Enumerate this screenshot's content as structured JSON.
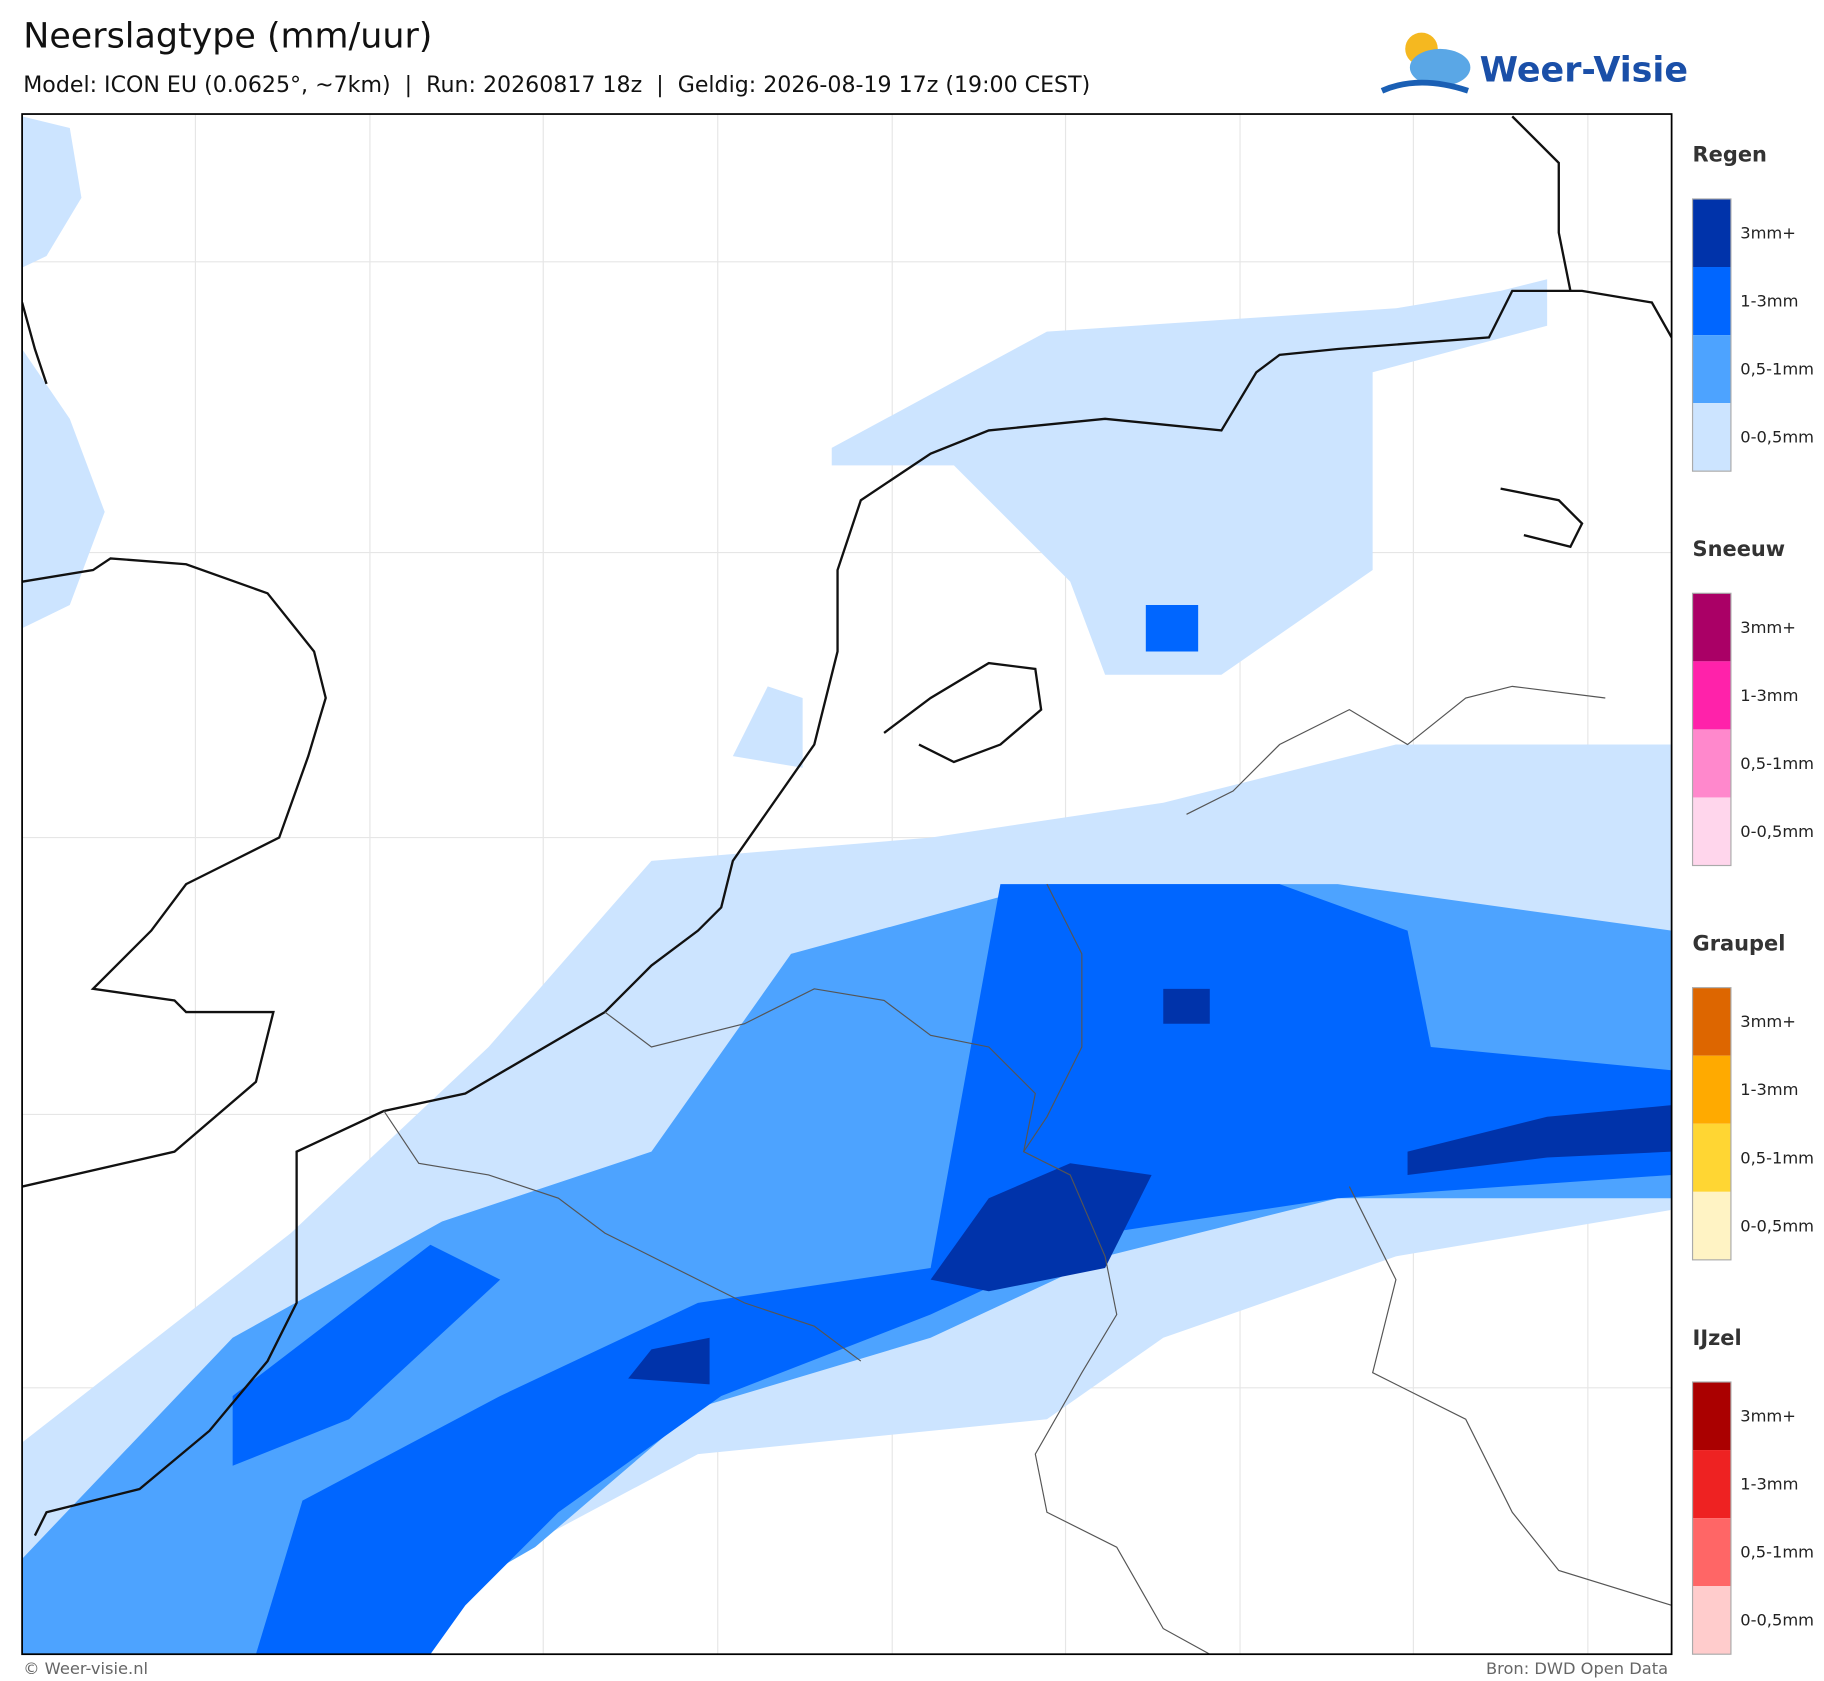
{
  "header": {
    "title": "Neerslagtype (mm/uur)",
    "subtitle": "Model: ICON EU (0.0625°, ~7km)  |  Run: 20260817 18z  |  Geldig: 2026-08-19 17z (19:00 CEST)"
  },
  "logo": {
    "text": "Weer-Visie"
  },
  "legend": [
    {
      "title": "Regen",
      "items": [
        {
          "label": "3mm+",
          "color": "#0033aa"
        },
        {
          "label": "1-3mm",
          "color": "#0066ff"
        },
        {
          "label": "0,5-1mm",
          "color": "#4da3ff"
        },
        {
          "label": "0-0,5mm",
          "color": "#cce4ff"
        }
      ]
    },
    {
      "title": "Sneeuw",
      "items": [
        {
          "label": "3mm+",
          "color": "#aa0066"
        },
        {
          "label": "1-3mm",
          "color": "#ff22aa"
        },
        {
          "label": "0,5-1mm",
          "color": "#ff88cc"
        },
        {
          "label": "0-0,5mm",
          "color": "#ffd6ec"
        }
      ]
    },
    {
      "title": "Graupel",
      "items": [
        {
          "label": "3mm+",
          "color": "#dd6600"
        },
        {
          "label": "1-3mm",
          "color": "#ffaa00"
        },
        {
          "label": "0,5-1mm",
          "color": "#ffd633"
        },
        {
          "label": "0-0,5mm",
          "color": "#fff3c4"
        }
      ]
    },
    {
      "title": "IJzel",
      "items": [
        {
          "label": "3mm+",
          "color": "#aa0000"
        },
        {
          "label": "1-3mm",
          "color": "#ee2222"
        },
        {
          "label": "0,5-1mm",
          "color": "#ff6666"
        },
        {
          "label": "0-0,5mm",
          "color": "#ffcccc"
        }
      ]
    }
  ],
  "footer": {
    "left": "© Weer-visie.nl",
    "right": "Bron: DWD Open Data"
  }
}
